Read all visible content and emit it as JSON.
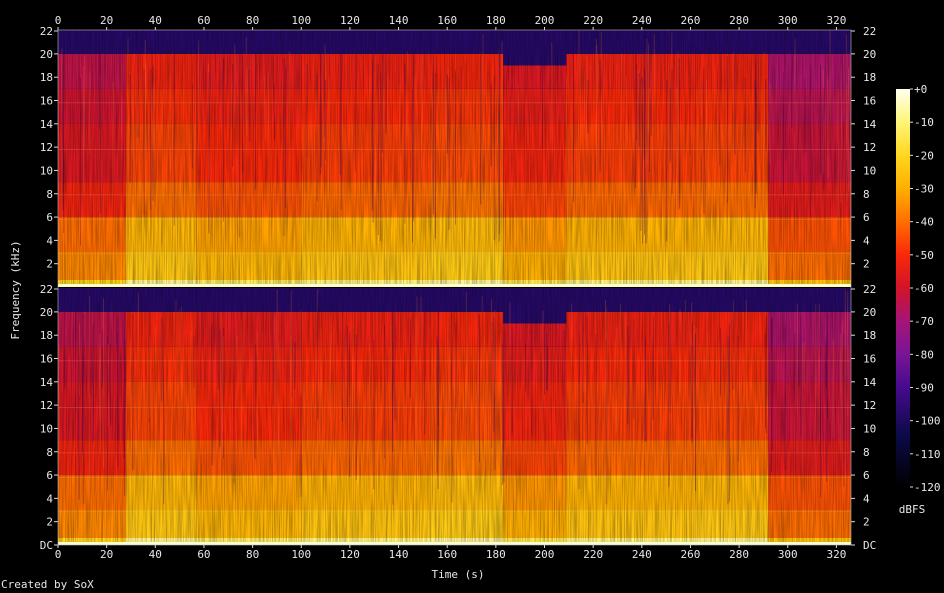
{
  "credit": "Created by SoX",
  "chart_data": {
    "type": "heatmap",
    "title": "",
    "xlabel": "Time (s)",
    "ylabel": "Frequency (kHz)",
    "x_ticks": [
      0,
      20,
      40,
      60,
      80,
      100,
      120,
      140,
      160,
      180,
      200,
      220,
      240,
      260,
      280,
      300,
      320
    ],
    "xlim": [
      0,
      326
    ],
    "channels": [
      {
        "ylim": [
          0,
          22.05
        ],
        "y_ticks": [
          "22",
          "20",
          "18",
          "16",
          "14",
          "12",
          "10",
          "8",
          "6",
          "4",
          "2"
        ],
        "y_tick_values": [
          22,
          20,
          18,
          16,
          14,
          12,
          10,
          8,
          6,
          4,
          2
        ]
      },
      {
        "ylim": [
          0,
          22.05
        ],
        "y_ticks": [
          "22",
          "20",
          "18",
          "16",
          "14",
          "12",
          "10",
          "8",
          "6",
          "4",
          "2",
          "DC"
        ],
        "y_tick_values": [
          22,
          20,
          18,
          16,
          14,
          12,
          10,
          8,
          6,
          4,
          2,
          0
        ]
      }
    ],
    "colorbar": {
      "label": "dBFS",
      "range": [
        -120,
        0
      ],
      "ticks": [
        "+0",
        "-10",
        "-20",
        "-30",
        "-40",
        "-50",
        "-60",
        "-70",
        "-80",
        "-90",
        "-100",
        "-110",
        "-120"
      ],
      "tick_values": [
        0,
        -10,
        -20,
        -30,
        -40,
        -50,
        -60,
        -70,
        -80,
        -90,
        -100,
        -110,
        -120
      ]
    },
    "segments": [
      {
        "start": 0,
        "end": 28,
        "level_dBFS": -58,
        "cutoff_kHz": 20
      },
      {
        "start": 28,
        "end": 57,
        "level_dBFS": -46,
        "cutoff_kHz": 20
      },
      {
        "start": 57,
        "end": 100,
        "level_dBFS": -50,
        "cutoff_kHz": 20
      },
      {
        "start": 100,
        "end": 153,
        "level_dBFS": -47,
        "cutoff_kHz": 20
      },
      {
        "start": 153,
        "end": 183,
        "level_dBFS": -45,
        "cutoff_kHz": 20
      },
      {
        "start": 183,
        "end": 209,
        "level_dBFS": -52,
        "cutoff_kHz": 19
      },
      {
        "start": 209,
        "end": 262,
        "level_dBFS": -47,
        "cutoff_kHz": 20
      },
      {
        "start": 262,
        "end": 292,
        "level_dBFS": -46,
        "cutoff_kHz": 20
      },
      {
        "start": 292,
        "end": 326,
        "level_dBFS": -62,
        "cutoff_kHz": 20
      }
    ]
  }
}
